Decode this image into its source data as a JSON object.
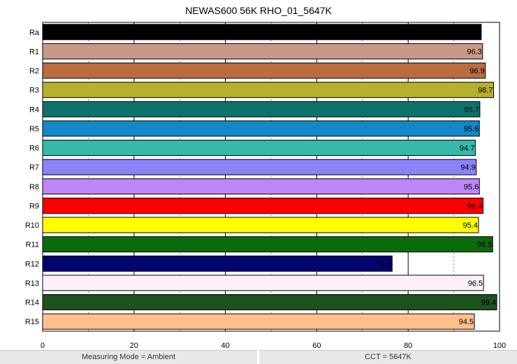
{
  "chart_data": {
    "type": "bar",
    "orientation": "horizontal",
    "title": "NEWAS600 56K RHO_01_5647K",
    "xlim": [
      0,
      100
    ],
    "xticks": [
      "0",
      "20",
      "40",
      "60",
      "80",
      "100"
    ],
    "grid": true,
    "categories": [
      "Ra",
      "R1",
      "R2",
      "R3",
      "R4",
      "R5",
      "R6",
      "R7",
      "R8",
      "R9",
      "R10",
      "R11",
      "R12",
      "R13",
      "R14",
      "R15"
    ],
    "values": [
      96.0,
      96.3,
      96.9,
      98.7,
      95.7,
      95.6,
      94.7,
      94.9,
      95.6,
      96.4,
      95.4,
      98.5,
      76.5,
      96.5,
      99.4,
      94.5
    ],
    "value_labels": [
      "96.0",
      "96.3",
      "96.9",
      "98.7",
      "95.7",
      "95.6",
      "94.7",
      "94.9",
      "95.6",
      "96.4",
      "95.4",
      "98.5",
      "76.5",
      "96.5",
      "99.4",
      "94.5"
    ],
    "colors": [
      "#000000",
      "#c79a87",
      "#bb6b3f",
      "#b5b02e",
      "#0f716b",
      "#1387c8",
      "#36b8aa",
      "#8b83fa",
      "#bd86f6",
      "#ff0000",
      "#ffff00",
      "#0b6b0b",
      "#04046e",
      "#fdeefc",
      "#1c531c",
      "#ffc08c"
    ]
  },
  "footer": {
    "left": "Measuring Mode = Ambient",
    "right": "CCT = 5647K"
  }
}
